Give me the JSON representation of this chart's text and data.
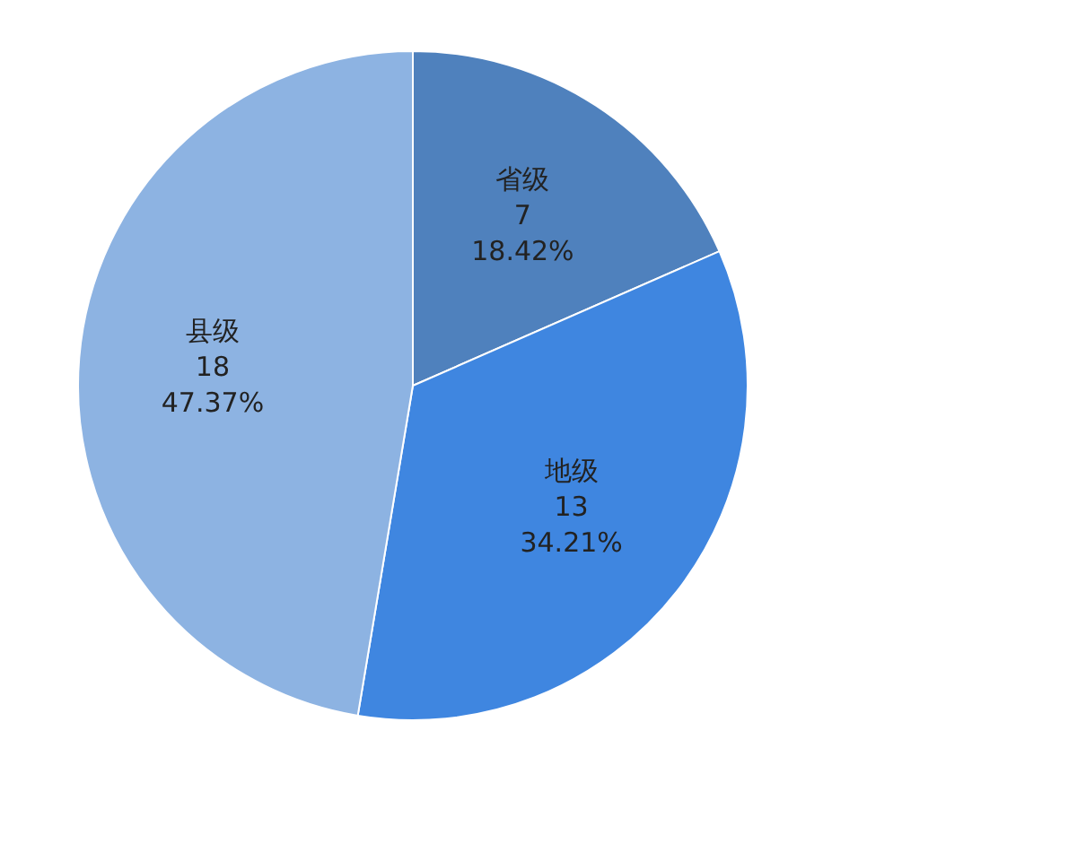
{
  "chart_data": {
    "type": "pie",
    "categories": [
      "省级",
      "地级",
      "县级"
    ],
    "values": [
      18.42,
      34.21,
      47.37
    ],
    "colors": [
      "#4f81bd",
      "#3f86e0",
      "#8db3e2"
    ],
    "value_labels": [
      "7\n18.42%",
      "13\n34.21%",
      "18\n47.37%"
    ],
    "legend": false
  }
}
